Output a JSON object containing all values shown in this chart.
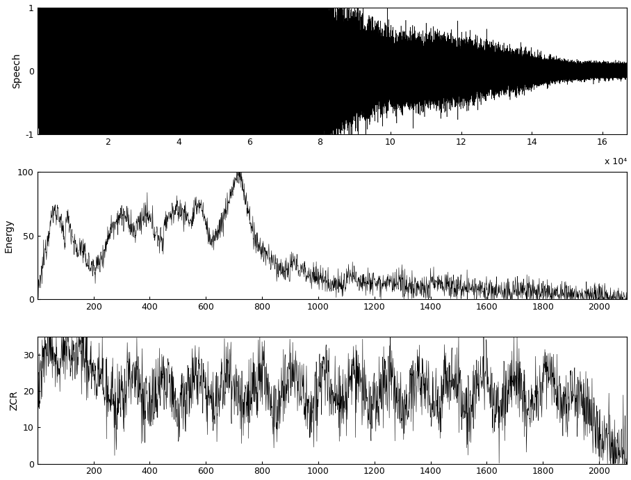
{
  "speech_xlim": [
    0,
    167000
  ],
  "speech_ylim": [
    -1,
    1
  ],
  "speech_xticks": [
    20000,
    40000,
    60000,
    80000,
    100000,
    120000,
    140000,
    160000
  ],
  "speech_xtick_labels": [
    "2",
    "4",
    "6",
    "8",
    "10",
    "12",
    "14",
    "16"
  ],
  "speech_xlabel_exp": "x 10⁴",
  "speech_yticks": [
    -1,
    0,
    1
  ],
  "speech_ylabel": "Speech",
  "energy_xlim": [
    0,
    2100
  ],
  "energy_ylim": [
    0,
    100
  ],
  "energy_xticks": [
    200,
    400,
    600,
    800,
    1000,
    1200,
    1400,
    1600,
    1800,
    2000
  ],
  "energy_yticks": [
    0,
    50,
    100
  ],
  "energy_ylabel": "Energy",
  "zcr_xlim": [
    0,
    2100
  ],
  "zcr_ylim": [
    0,
    35
  ],
  "zcr_xticks": [
    200,
    400,
    600,
    800,
    1000,
    1200,
    1400,
    1600,
    1800,
    2000
  ],
  "zcr_yticks": [
    0,
    10,
    20,
    30
  ],
  "zcr_ylabel": "ZCR",
  "line_color": "#000000",
  "bg_color": "#ffffff",
  "linewidth": 0.4,
  "seed": 12345
}
